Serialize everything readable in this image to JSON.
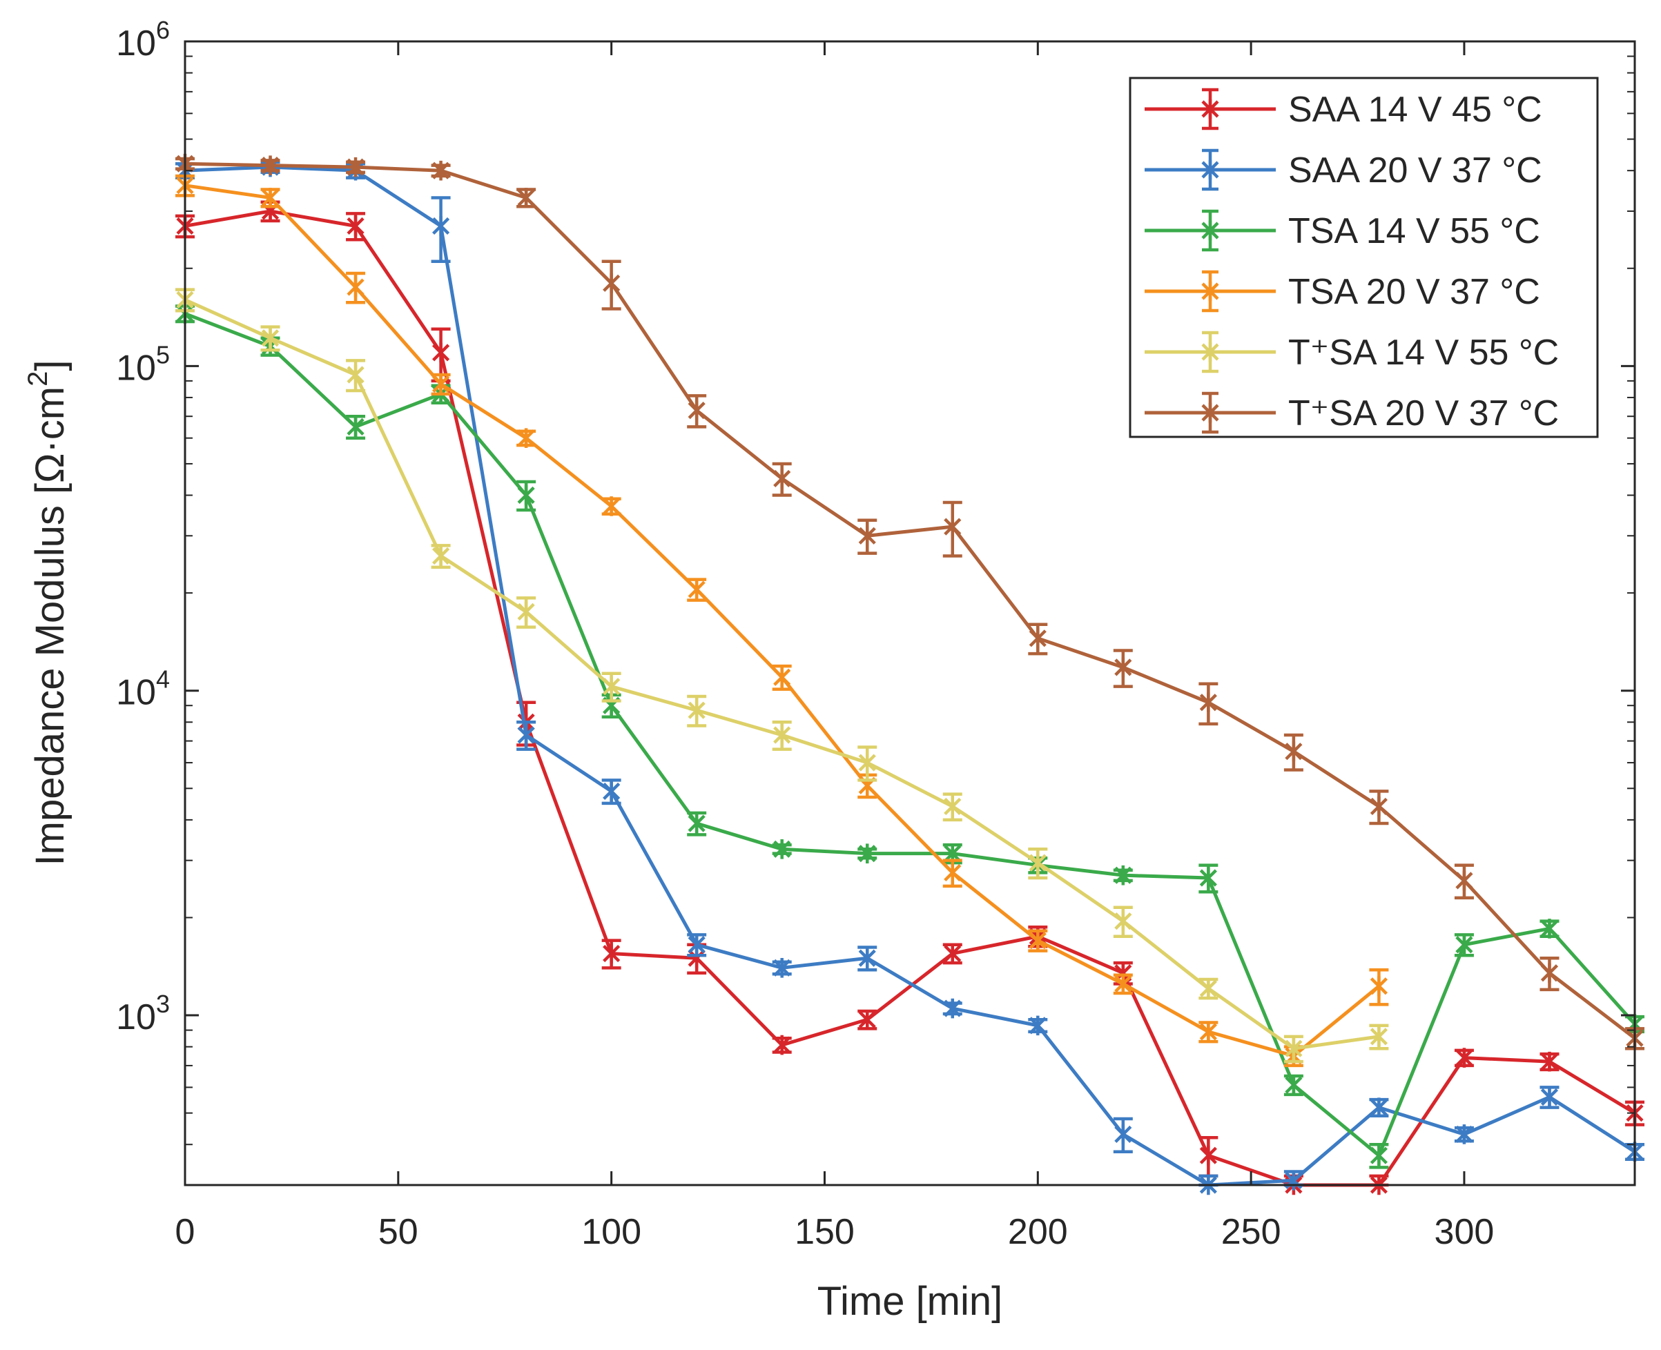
{
  "chart_data": {
    "type": "line",
    "title": "",
    "xlabel": "Time [min]",
    "ylabel": "Impedance Modulus [Ω·cm",
    "ylabel_superscript": "2",
    "ylabel_close": "]",
    "xlim": [
      0,
      340
    ],
    "ylim": [
      300,
      1000000
    ],
    "yscale": "log",
    "xticks": [
      0,
      50,
      100,
      150,
      200,
      250,
      300
    ],
    "xtick_labels": [
      "0",
      "50",
      "100",
      "150",
      "200",
      "250",
      "300"
    ],
    "yticks": [
      1000,
      10000,
      100000,
      1000000
    ],
    "ytick_labels": [
      {
        "base": "10",
        "exp": "3"
      },
      {
        "base": "10",
        "exp": "4"
      },
      {
        "base": "10",
        "exp": "5"
      },
      {
        "base": "10",
        "exp": "6"
      }
    ],
    "grid": false,
    "legend_position": "top-right",
    "series": [
      {
        "name": "SAA 14 V 45 °C",
        "color": "#d7262b",
        "x": [
          0,
          20,
          40,
          60,
          80,
          100,
          120,
          140,
          160,
          180,
          200,
          220,
          240,
          260,
          280,
          300,
          320,
          340
        ],
        "y": [
          270000,
          300000,
          270000,
          110000,
          8000,
          1550,
          1500,
          810,
          970,
          1550,
          1750,
          1350,
          370,
          300,
          300,
          740,
          720,
          500
        ],
        "err": [
          20000,
          20000,
          25000,
          20000,
          1200,
          150,
          150,
          40,
          60,
          100,
          120,
          100,
          50,
          20,
          20,
          40,
          40,
          40
        ]
      },
      {
        "name": "SAA 20 V 37 °C",
        "color": "#3d7cc4",
        "x": [
          0,
          20,
          40,
          60,
          80,
          100,
          120,
          140,
          160,
          180,
          200,
          220,
          240,
          260,
          280,
          300,
          320,
          340
        ],
        "y": [
          400000,
          410000,
          400000,
          270000,
          7300,
          4900,
          1650,
          1400,
          1500,
          1050,
          930,
          430,
          300,
          310,
          520,
          430,
          560,
          380
        ],
        "err": [
          20000,
          15000,
          20000,
          60000,
          700,
          400,
          120,
          60,
          120,
          40,
          40,
          50,
          20,
          20,
          30,
          20,
          40,
          20
        ]
      },
      {
        "name": "TSA 14 V 55 °C",
        "color": "#3aaa4a",
        "x": [
          0,
          20,
          40,
          60,
          80,
          100,
          120,
          140,
          160,
          180,
          200,
          220,
          240,
          260,
          280,
          300,
          320,
          340
        ],
        "y": [
          145000,
          115000,
          65000,
          82000,
          40000,
          9000,
          3900,
          3250,
          3150,
          3150,
          2900,
          2700,
          2650,
          610,
          370,
          1650,
          1850,
          940
        ],
        "err": [
          8000,
          7000,
          5000,
          5000,
          4000,
          700,
          300,
          100,
          100,
          200,
          150,
          100,
          250,
          40,
          30,
          120,
          100,
          50
        ]
      },
      {
        "name": "TSA 20 V 37 °C",
        "color": "#f5901e",
        "x": [
          0,
          20,
          40,
          60,
          80,
          100,
          120,
          140,
          160,
          180,
          200,
          220,
          240,
          260,
          280
        ],
        "y": [
          360000,
          330000,
          175000,
          88000,
          60000,
          37000,
          20500,
          11000,
          5100,
          2750,
          1700,
          1250,
          890,
          750,
          1230
        ],
        "err": [
          25000,
          20000,
          18000,
          6000,
          3000,
          2000,
          1500,
          900,
          400,
          250,
          120,
          80,
          60,
          50,
          150
        ]
      },
      {
        "name": "T⁺SA 14 V 55 °C",
        "color": "#ddd068",
        "x": [
          0,
          20,
          40,
          60,
          80,
          100,
          120,
          140,
          160,
          180,
          200,
          220,
          240,
          260,
          280
        ],
        "y": [
          160000,
          122000,
          94000,
          26000,
          17500,
          10300,
          8700,
          7300,
          6000,
          4400,
          2950,
          1950,
          1210,
          790,
          860
        ],
        "err": [
          12000,
          10000,
          10000,
          2000,
          1800,
          1000,
          900,
          700,
          700,
          400,
          300,
          200,
          80,
          70,
          70
        ]
      },
      {
        "name": "T⁺SA 20 V 37 °C",
        "color": "#b0623a",
        "x": [
          0,
          20,
          40,
          60,
          80,
          100,
          120,
          140,
          160,
          180,
          200,
          220,
          240,
          260,
          280,
          300,
          320,
          340
        ],
        "y": [
          420000,
          415000,
          410000,
          400000,
          330000,
          180000,
          73000,
          45000,
          30000,
          32000,
          14500,
          11800,
          9200,
          6500,
          4400,
          2600,
          1350,
          850
        ],
        "err": [
          15000,
          15000,
          15000,
          15000,
          20000,
          30000,
          8000,
          5000,
          3500,
          6000,
          1500,
          1500,
          1300,
          800,
          500,
          300,
          150,
          60
        ]
      }
    ]
  }
}
